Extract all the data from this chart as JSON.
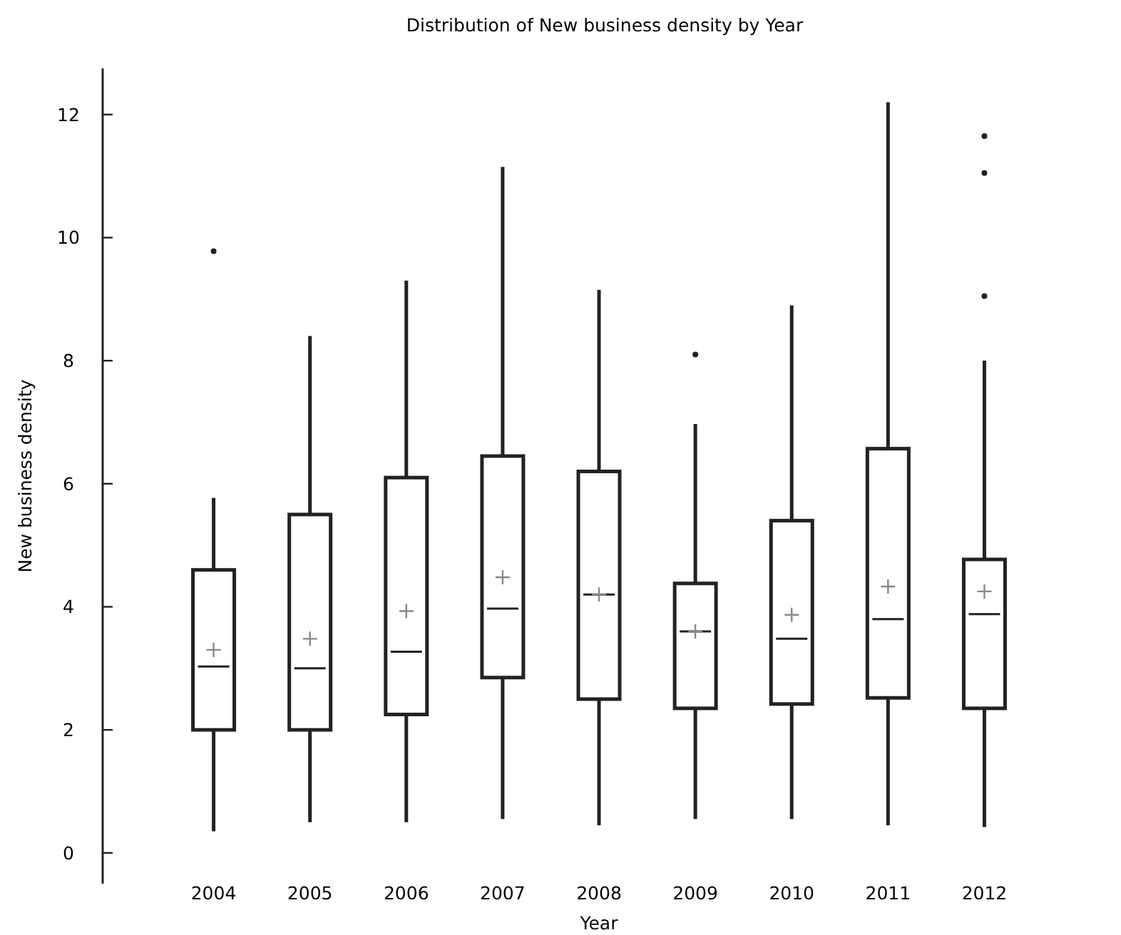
{
  "chart_data": {
    "type": "box",
    "title": "Distribution of New business density by Year",
    "xlabel": "Year",
    "ylabel": "New business density",
    "categories": [
      "2004",
      "2005",
      "2006",
      "2007",
      "2008",
      "2009",
      "2010",
      "2011",
      "2012"
    ],
    "boxes": [
      {
        "low": 0.35,
        "q1": 2.0,
        "median": 3.03,
        "q3": 4.6,
        "high": 5.77,
        "mean": 3.3,
        "outliers": [
          9.78
        ]
      },
      {
        "low": 0.5,
        "q1": 2.0,
        "median": 3.0,
        "q3": 5.5,
        "high": 8.4,
        "mean": 3.48
      },
      {
        "low": 0.5,
        "q1": 2.25,
        "median": 3.27,
        "q3": 6.1,
        "high": 9.3,
        "mean": 3.93
      },
      {
        "low": 0.55,
        "q1": 2.85,
        "median": 3.97,
        "q3": 6.45,
        "high": 11.15,
        "mean": 4.48
      },
      {
        "low": 0.45,
        "q1": 2.5,
        "median": 4.2,
        "q3": 6.2,
        "high": 9.15,
        "mean": 4.2
      },
      {
        "low": 0.55,
        "q1": 2.35,
        "median": 3.6,
        "q3": 4.38,
        "high": 6.97,
        "mean": 3.6,
        "outliers": [
          8.1
        ]
      },
      {
        "low": 0.55,
        "q1": 2.42,
        "median": 3.48,
        "q3": 5.4,
        "high": 8.9,
        "mean": 3.87
      },
      {
        "low": 0.45,
        "q1": 2.52,
        "median": 3.8,
        "q3": 6.57,
        "high": 12.2,
        "mean": 4.33
      },
      {
        "low": 0.42,
        "q1": 2.35,
        "median": 3.88,
        "q3": 4.77,
        "high": 8.0,
        "mean": 4.25,
        "outliers": [
          9.05,
          11.05,
          11.65
        ]
      }
    ],
    "color": "#222222",
    "ylim": [
      -0.5,
      12.75
    ],
    "yticks": [
      0,
      2,
      4,
      6,
      8,
      10,
      12
    ],
    "grid": false
  }
}
